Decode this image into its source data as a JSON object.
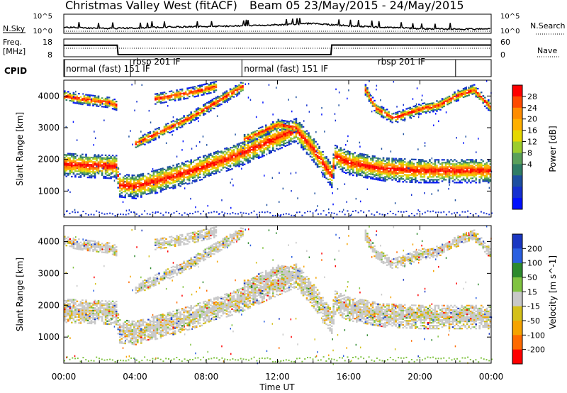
{
  "header": {
    "station": "Christmas Valley West (fitACF)",
    "beam_date": "Beam 05 23/May/2015 - 24/May/2015"
  },
  "side_labels": {
    "n_sky": "N.Sky",
    "n_search": "N.Search",
    "freq": "Freq.",
    "freq_unit": "[MHz]",
    "nave": "Nave",
    "cpid": "CPID"
  },
  "noise_axis": {
    "left_top": "10^5",
    "left_bottom": "10^0",
    "right_top": "10^5",
    "right_bottom": "10^0"
  },
  "freq_axis": {
    "left_top": "18",
    "left_bottom": "8",
    "right_top": "60",
    "right_bottom": "0"
  },
  "cpid_segments": [
    {
      "label": "normal (fast) 151 IF",
      "start_h": 0,
      "end_h": 3.75
    },
    {
      "label": "rbsp 201 IF",
      "start_h": 3.75,
      "end_h": 10
    },
    {
      "label": "normal (fast) 151 IF",
      "start_h": 10,
      "end_h": 22
    },
    {
      "label": "rbsp 201 IF",
      "start_h": 17.5,
      "end_h": 22
    }
  ],
  "range_ticks": [
    "1000",
    "2000",
    "3000",
    "4000"
  ],
  "time_ticks": [
    "00:00",
    "04:00",
    "08:00",
    "12:00",
    "16:00",
    "20:00",
    "00:00"
  ],
  "xlabel": "Time UT",
  "power_panel": {
    "ylabel": "Slant Range [km]"
  },
  "velocity_panel": {
    "ylabel": "Slant Range [km]"
  },
  "power_scale": {
    "title": "Power [dB]",
    "ticks": [
      "28",
      "24",
      "20",
      "16",
      "12",
      "8",
      "4"
    ],
    "colors": [
      "#ff0000",
      "#ff4a00",
      "#ff8c00",
      "#ffb000",
      "#e6d800",
      "#9ccd2d",
      "#5aa05a",
      "#2f7d65",
      "#1d4fa0",
      "#1530d0",
      "#0010ff"
    ]
  },
  "velocity_scale": {
    "title": "Velocity [m s^-1]",
    "ticks": [
      "200",
      "100",
      "50",
      "15",
      "-15",
      "-50",
      "-100",
      "-200"
    ],
    "colors": [
      "#1a37c2",
      "#2a5fe0",
      "#2d8a2d",
      "#80c341",
      "#c8c8c8",
      "#d4c01a",
      "#f5a300",
      "#ff6a00",
      "#ff0000"
    ]
  },
  "chart_data": {
    "type": "heatmap",
    "x_range_hours": [
      0,
      24
    ],
    "y_range_km": [
      180,
      4500
    ],
    "echo_bands": [
      {
        "name": "band-a",
        "points": [
          [
            0,
            1850
          ],
          [
            1,
            1820
          ],
          [
            2,
            1800
          ],
          [
            2.9,
            1780
          ],
          [
            3.1,
            1200
          ],
          [
            4,
            1150
          ],
          [
            6,
            1450
          ],
          [
            8,
            1800
          ],
          [
            10,
            2200
          ],
          [
            12,
            2700
          ],
          [
            13,
            2950
          ],
          [
            14,
            2300
          ],
          [
            15,
            1500
          ],
          [
            15.2,
            2100
          ],
          [
            16,
            1900
          ],
          [
            18,
            1700
          ],
          [
            20,
            1650
          ],
          [
            22,
            1650
          ],
          [
            24,
            1650
          ]
        ]
      },
      {
        "name": "band-b",
        "points": [
          [
            0,
            4000
          ],
          [
            1,
            3900
          ],
          [
            2.5,
            3800
          ],
          [
            3,
            3700
          ]
        ]
      },
      {
        "name": "band-c",
        "points": [
          [
            4,
            2500
          ],
          [
            5.5,
            2900
          ],
          [
            7,
            3300
          ],
          [
            8.5,
            3800
          ],
          [
            10,
            4300
          ]
        ]
      },
      {
        "name": "band-d",
        "points": [
          [
            5,
            3900
          ],
          [
            7,
            4100
          ],
          [
            8.5,
            4300
          ]
        ]
      },
      {
        "name": "band-e",
        "points": [
          [
            10,
            2600
          ],
          [
            12,
            3100
          ],
          [
            13,
            3000
          ]
        ]
      },
      {
        "name": "band-f",
        "points": [
          [
            16.8,
            4300
          ],
          [
            17.5,
            3600
          ],
          [
            18.5,
            3300
          ],
          [
            20,
            3600
          ],
          [
            21,
            3700
          ],
          [
            22,
            4000
          ],
          [
            23,
            4200
          ],
          [
            24,
            3600
          ]
        ]
      }
    ],
    "noise_sky": [
      [
        0,
        1.3
      ],
      [
        2,
        1.0
      ],
      [
        4,
        1.1
      ],
      [
        6,
        1.4
      ],
      [
        9,
        1.6
      ],
      [
        12,
        2.0
      ],
      [
        14,
        2.4
      ],
      [
        16,
        1.7
      ],
      [
        18,
        1.3
      ],
      [
        20,
        0.9
      ],
      [
        22,
        0.8
      ],
      [
        24,
        0.8
      ]
    ],
    "frequency_mhz": [
      [
        0,
        14.5
      ],
      [
        3,
        14.5
      ],
      [
        3.05,
        9.2
      ],
      [
        15,
        9.2
      ],
      [
        15.05,
        14.6
      ],
      [
        24,
        14.6
      ]
    ]
  }
}
